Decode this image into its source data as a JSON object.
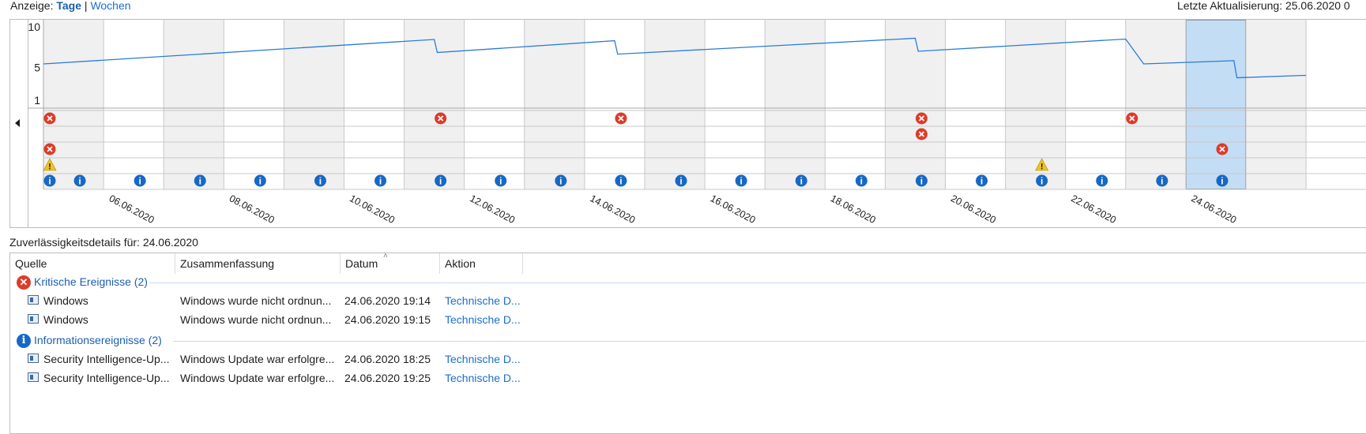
{
  "toolbar": {
    "view_label": "Anzeige:",
    "days": "Tage",
    "separator": "|",
    "weeks": "Wochen",
    "last_update": "Letzte Aktualisierung: 25.06.2020 0"
  },
  "chart_data": {
    "type": "line",
    "ylim": [
      1,
      10
    ],
    "yticks": [
      "10",
      "5",
      "1"
    ],
    "dates": [
      "05.06.2020",
      "06.06.2020",
      "07.06.2020",
      "08.06.2020",
      "09.06.2020",
      "10.06.2020",
      "11.06.2020",
      "12.06.2020",
      "13.06.2020",
      "14.06.2020",
      "15.06.2020",
      "16.06.2020",
      "17.06.2020",
      "18.06.2020",
      "19.06.2020",
      "20.06.2020",
      "21.06.2020",
      "22.06.2020",
      "23.06.2020",
      "24.06.2020",
      "25.06.2020"
    ],
    "date_labels": [
      "06.06.2020",
      "08.06.2020",
      "10.06.2020",
      "12.06.2020",
      "14.06.2020",
      "16.06.2020",
      "18.06.2020",
      "20.06.2020",
      "22.06.2020",
      "24.06.2020"
    ],
    "stability_index": [
      [
        0.0,
        5.45
      ],
      [
        6.5,
        8.45
      ],
      [
        6.55,
        6.85
      ],
      [
        9.5,
        8.3
      ],
      [
        9.55,
        6.65
      ],
      [
        14.5,
        8.6
      ],
      [
        14.55,
        7.0
      ],
      [
        18.0,
        8.5
      ],
      [
        18.3,
        5.45
      ],
      [
        19.8,
        5.85
      ],
      [
        19.85,
        3.75
      ],
      [
        21.0,
        4.05
      ]
    ],
    "events": {
      "critical_row1_days": [
        0,
        6.5,
        9.5,
        14.5,
        18.0
      ],
      "critical_row2_days": [
        14.5
      ],
      "application_failure_days": [
        0,
        19.5
      ],
      "warning_days": [
        0,
        16.5
      ],
      "information_days": [
        0,
        0.5,
        1.5,
        2.5,
        3.5,
        4.5,
        5.5,
        6.5,
        7.5,
        8.5,
        9.5,
        10.5,
        11.5,
        12.5,
        13.5,
        14.5,
        15.5,
        16.5,
        17.5,
        18.5,
        19.5
      ]
    },
    "selected_date": "24.06.2020"
  },
  "details": {
    "title": "Zuverlässigkeitsdetails für: 24.06.2020",
    "columns": [
      "Quelle",
      "Zusammenfassung",
      "Datum",
      "Aktion"
    ],
    "groups": [
      {
        "label": "Kritische Ereignisse (2)",
        "icon": "critical-icon",
        "rows": [
          {
            "source": "Windows",
            "summary": "Windows wurde nicht ordnun...",
            "date": "24.06.2020 19:14",
            "action": "Technische D..."
          },
          {
            "source": "Windows",
            "summary": "Windows wurde nicht ordnun...",
            "date": "24.06.2020 19:15",
            "action": "Technische D..."
          }
        ]
      },
      {
        "label": "Informationsereignisse (2)",
        "icon": "information-icon",
        "rows": [
          {
            "source": "Security Intelligence-Up...",
            "summary": "Windows Update war erfolgre...",
            "date": "24.06.2020 18:25",
            "action": "Technische D..."
          },
          {
            "source": "Security Intelligence-Up...",
            "summary": "Windows Update war erfolgre...",
            "date": "24.06.2020 19:25",
            "action": "Technische D..."
          }
        ]
      }
    ]
  }
}
